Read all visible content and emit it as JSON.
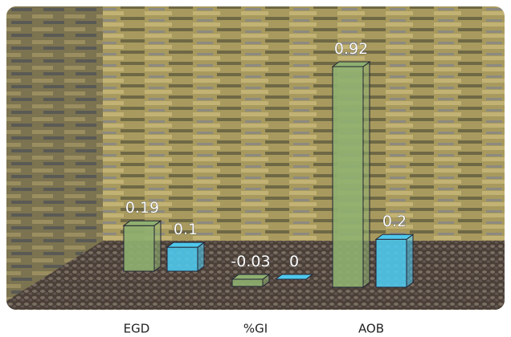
{
  "chart_data": {
    "type": "bar3d",
    "categories": [
      "EGD",
      "%GI",
      "AOB"
    ],
    "series": [
      {
        "color": "#8fb070",
        "values": [
          0.19,
          -0.03,
          0.92
        ]
      },
      {
        "color": "#4fc8ec",
        "values": [
          0.1,
          0,
          0.2
        ]
      }
    ]
  }
}
